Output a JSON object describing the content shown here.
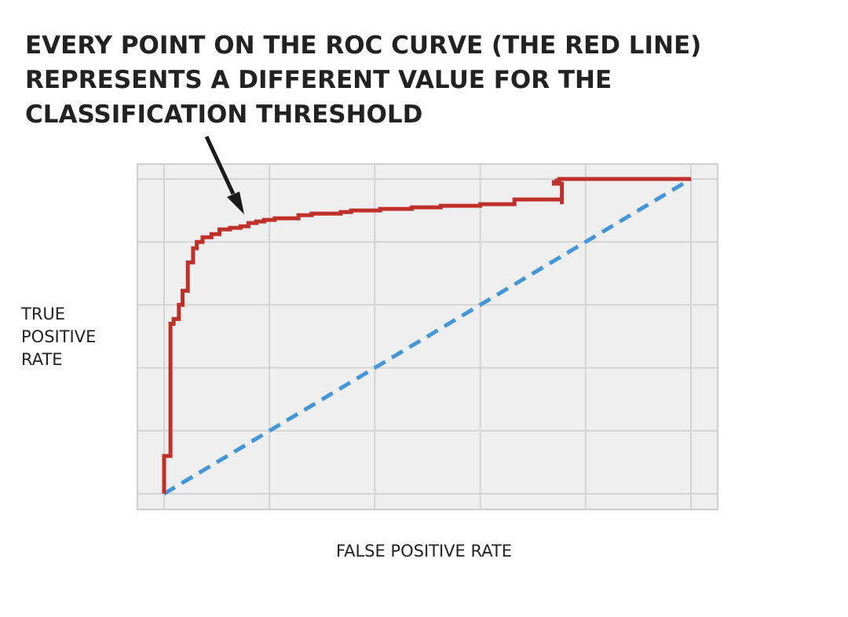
{
  "title_lines": [
    "EVERY POINT ON THE ROC CURVE (THE RED LINE)",
    "REPRESENTS A DIFFERENT VALUE FOR THE",
    "CLASSIFICATION THRESHOLD"
  ],
  "colors": {
    "roc_curve": "#c0302b",
    "diagonal": "#4396d9",
    "plot_background": "#efefef",
    "grid": "#d4d4d4",
    "text": "#222222",
    "arrow": "#1a1a1a"
  },
  "chart_data": {
    "type": "line",
    "xlabel": "FALSE POSITIVE RATE",
    "ylabel_lines": [
      "TRUE",
      "POSITIVE",
      "RATE"
    ],
    "xlim": [
      0,
      1
    ],
    "ylim": [
      0,
      1
    ],
    "grid": true,
    "xticks": [
      0,
      0.2,
      0.4,
      0.6,
      0.8,
      1
    ],
    "yticks": [
      0,
      0.2,
      0.4,
      0.6,
      0.8,
      1
    ],
    "tick_labels_shown": false,
    "legend": "none",
    "series": [
      {
        "key": "roc",
        "style": "solid",
        "points": [
          [
            0.0,
            0.0
          ],
          [
            0.0,
            0.12
          ],
          [
            0.012,
            0.12
          ],
          [
            0.012,
            0.54
          ],
          [
            0.018,
            0.54
          ],
          [
            0.018,
            0.555
          ],
          [
            0.028,
            0.555
          ],
          [
            0.028,
            0.6
          ],
          [
            0.035,
            0.6
          ],
          [
            0.035,
            0.645
          ],
          [
            0.045,
            0.645
          ],
          [
            0.045,
            0.735
          ],
          [
            0.055,
            0.735
          ],
          [
            0.055,
            0.78
          ],
          [
            0.062,
            0.78
          ],
          [
            0.062,
            0.8
          ],
          [
            0.073,
            0.8
          ],
          [
            0.073,
            0.815
          ],
          [
            0.09,
            0.815
          ],
          [
            0.09,
            0.825
          ],
          [
            0.105,
            0.825
          ],
          [
            0.105,
            0.84
          ],
          [
            0.125,
            0.84
          ],
          [
            0.125,
            0.845
          ],
          [
            0.145,
            0.845
          ],
          [
            0.145,
            0.85
          ],
          [
            0.16,
            0.85
          ],
          [
            0.16,
            0.86
          ],
          [
            0.175,
            0.86
          ],
          [
            0.175,
            0.865
          ],
          [
            0.19,
            0.865
          ],
          [
            0.19,
            0.87
          ],
          [
            0.21,
            0.87
          ],
          [
            0.21,
            0.875
          ],
          [
            0.255,
            0.875
          ],
          [
            0.255,
            0.885
          ],
          [
            0.28,
            0.885
          ],
          [
            0.28,
            0.89
          ],
          [
            0.335,
            0.89
          ],
          [
            0.335,
            0.895
          ],
          [
            0.355,
            0.895
          ],
          [
            0.355,
            0.9
          ],
          [
            0.41,
            0.9
          ],
          [
            0.41,
            0.905
          ],
          [
            0.47,
            0.905
          ],
          [
            0.47,
            0.91
          ],
          [
            0.525,
            0.91
          ],
          [
            0.525,
            0.915
          ],
          [
            0.6,
            0.915
          ],
          [
            0.6,
            0.92
          ],
          [
            0.665,
            0.92
          ],
          [
            0.665,
            0.935
          ],
          [
            0.755,
            0.935
          ],
          [
            0.755,
            0.92
          ],
          [
            0.755,
            0.975
          ],
          [
            0.755,
            0.985
          ],
          [
            0.74,
            0.985
          ],
          [
            0.74,
            0.99
          ],
          [
            0.745,
            0.99
          ],
          [
            0.745,
            0.995
          ],
          [
            0.75,
            0.995
          ],
          [
            0.75,
            1.0
          ],
          [
            1.0,
            1.0
          ]
        ]
      },
      {
        "key": "diagonal",
        "style": "dashed",
        "points": [
          [
            0,
            0
          ],
          [
            1,
            1
          ]
        ]
      }
    ]
  }
}
